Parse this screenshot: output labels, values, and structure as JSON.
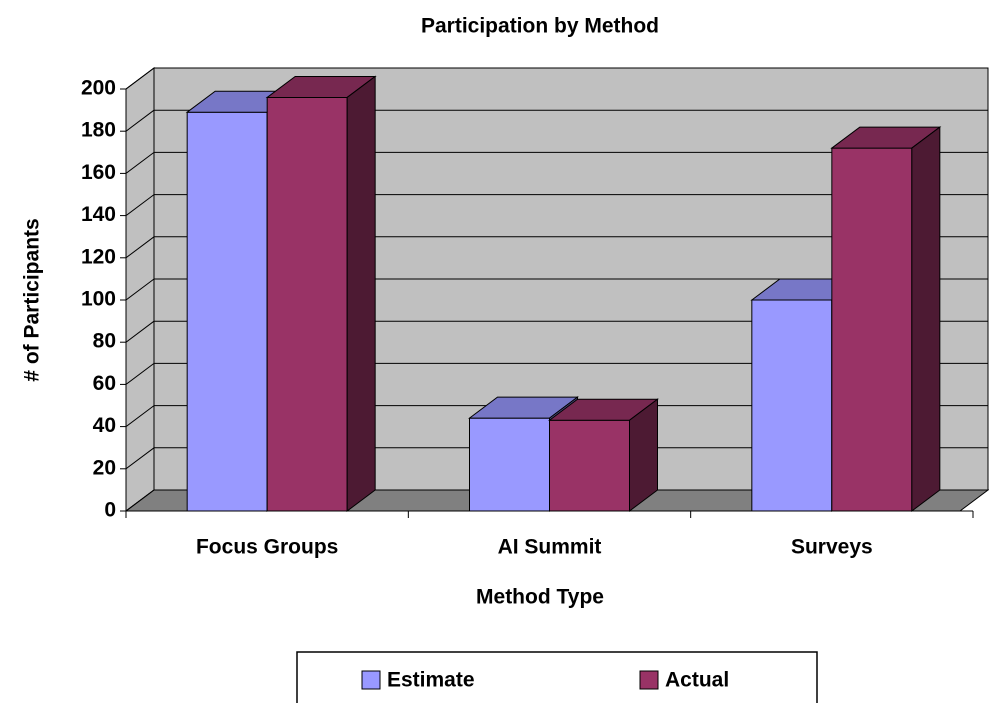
{
  "chart_data": {
    "type": "bar3d",
    "title": "Participation by Method",
    "x_label": "Method Type",
    "y_label": "# of Participants",
    "categories": [
      "Focus Groups",
      "AI Summit",
      "Surveys"
    ],
    "series": [
      {
        "name": "Estimate",
        "color": "#9999ff",
        "values": [
          189,
          44,
          100
        ]
      },
      {
        "name": "Actual",
        "color": "#993366",
        "values": [
          196,
          43,
          172
        ]
      }
    ],
    "ylim": [
      0,
      200
    ],
    "yticks": [
      0,
      20,
      40,
      60,
      80,
      100,
      120,
      140,
      160,
      180,
      200
    ],
    "grid": true,
    "legend": "bottom"
  }
}
